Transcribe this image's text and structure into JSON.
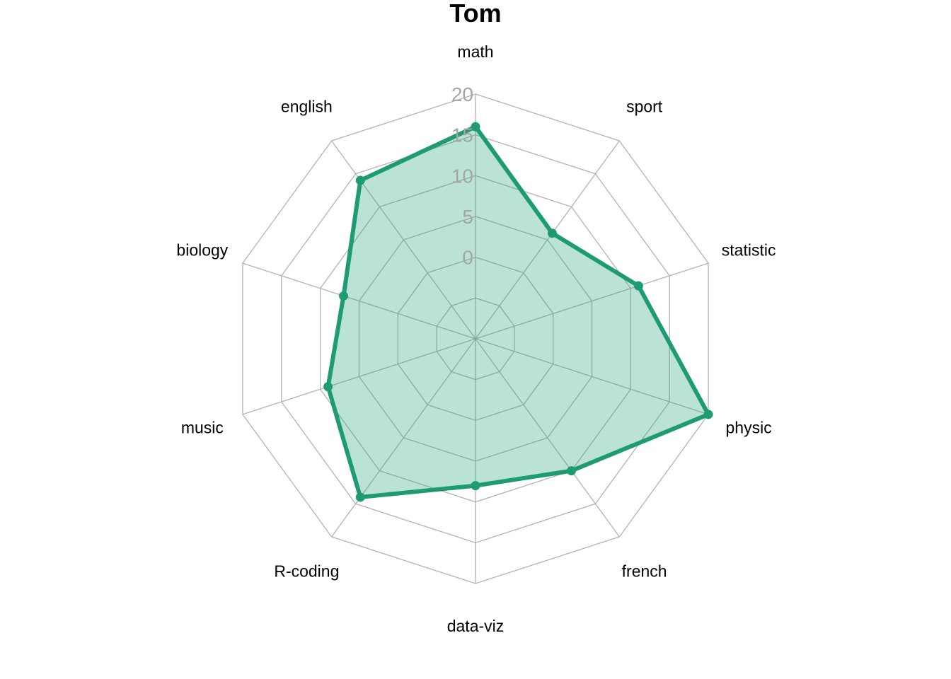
{
  "chart_data": {
    "type": "radar",
    "title": "Tom",
    "categories": [
      "math",
      "sport",
      "statistic",
      "physic",
      "french",
      "data-viz",
      "R-coding",
      "music",
      "biology",
      "english"
    ],
    "series": [
      {
        "values": [
          16,
          6,
          11,
          20,
          10,
          8,
          14,
          9,
          7,
          14
        ]
      }
    ],
    "rlim": [
      -10,
      20
    ],
    "ticks": [
      0,
      5,
      10,
      15,
      20
    ],
    "grid": true,
    "colors": {
      "line": "#1f9b73",
      "fill": "#1b9e77",
      "grid": "#b3b3b3",
      "tick": "#a6a6a6"
    }
  }
}
